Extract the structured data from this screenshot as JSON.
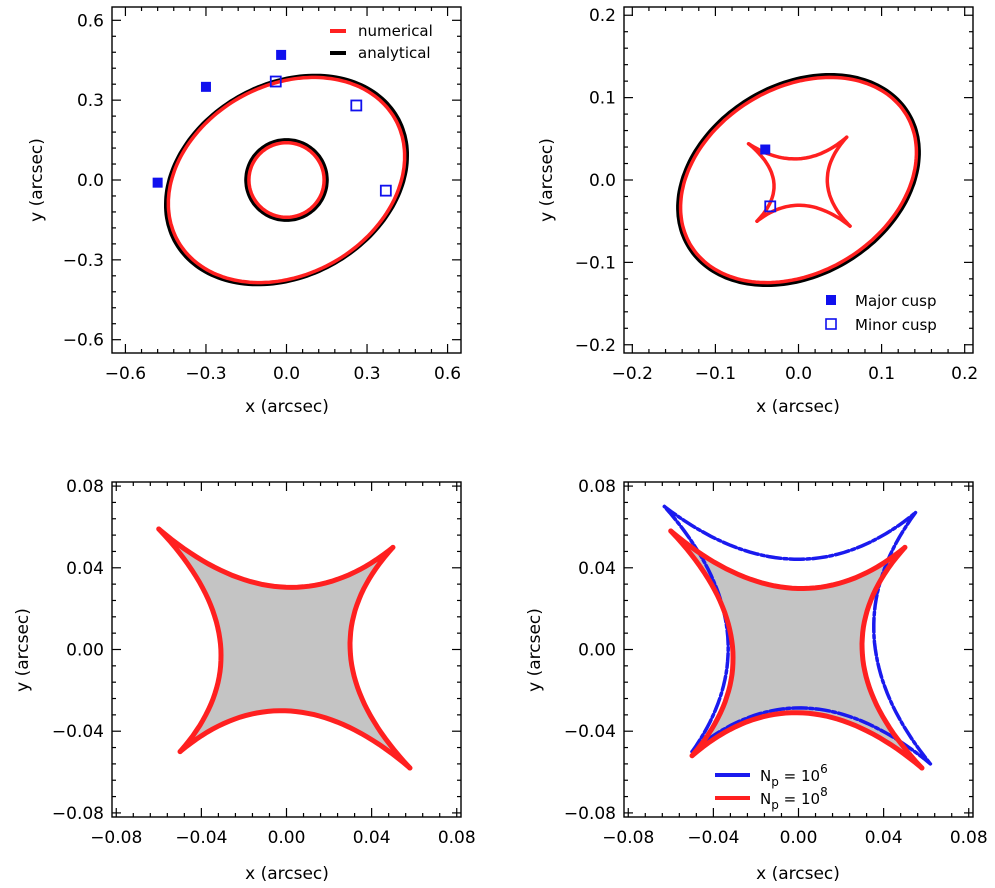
{
  "colors": {
    "numerical": "#ff2020",
    "analytical": "#000000",
    "cusp": "#1010ee",
    "np6": "#1a1aee",
    "np8": "#ff2020"
  },
  "chart_data": [
    {
      "type": "line",
      "panel": "top-left",
      "xlabel": "x (arcsec)",
      "ylabel": "y (arcsec)",
      "xlim": [
        -0.65,
        0.65
      ],
      "ylim": [
        -0.65,
        0.65
      ],
      "xticks": [
        "−0.6",
        "−0.3",
        "0.0",
        "0.3",
        "0.6"
      ],
      "yticks": [
        "−0.6",
        "−0.3",
        "0.0",
        "0.3",
        "0.6"
      ],
      "legend": [
        "numerical",
        "analytical"
      ],
      "legend_position": "top-right",
      "series": [
        {
          "name": "analytical",
          "shape": "ellipse",
          "center": [
            0.0,
            0.0
          ],
          "semi_axes": [
            0.475,
            0.36
          ],
          "angle_deg": 30
        },
        {
          "name": "numerical",
          "shape": "ellipse",
          "center": [
            0.0,
            0.0
          ],
          "semi_axes": [
            0.465,
            0.355
          ],
          "angle_deg": 30
        },
        {
          "name": "analytical",
          "shape": "circle",
          "center": [
            0.0,
            0.0
          ],
          "radius": 0.15
        },
        {
          "name": "numerical",
          "shape": "circle",
          "center": [
            0.0,
            0.0
          ],
          "radius": 0.14
        }
      ],
      "points": [
        {
          "x": -0.48,
          "y": -0.01,
          "kind": "major"
        },
        {
          "x": -0.3,
          "y": 0.35,
          "kind": "major"
        },
        {
          "x": -0.02,
          "y": 0.47,
          "kind": "major"
        },
        {
          "x": -0.04,
          "y": 0.37,
          "kind": "minor"
        },
        {
          "x": 0.26,
          "y": 0.28,
          "kind": "minor"
        },
        {
          "x": 0.37,
          "y": -0.04,
          "kind": "minor"
        }
      ]
    },
    {
      "type": "line",
      "panel": "top-right",
      "xlabel": "x (arcsec)",
      "ylabel": "y (arcsec)",
      "xlim": [
        -0.21,
        0.21
      ],
      "ylim": [
        -0.21,
        0.21
      ],
      "xticks": [
        "−0.2",
        "−0.1",
        "0.0",
        "0.1",
        "0.2"
      ],
      "yticks": [
        "−0.2",
        "−0.1",
        "0.0",
        "0.1",
        "0.2"
      ],
      "legend": [
        "Major cusp",
        "Minor cusp"
      ],
      "legend_position": "bottom-right",
      "series": [
        {
          "name": "analytical",
          "shape": "ellipse",
          "center": [
            0.0,
            0.0
          ],
          "semi_axes": [
            0.155,
            0.115
          ],
          "angle_deg": 32
        },
        {
          "name": "numerical",
          "shape": "ellipse",
          "center": [
            0.0,
            0.0
          ],
          "semi_axes": [
            0.152,
            0.112
          ],
          "angle_deg": 32
        },
        {
          "name": "numerical",
          "shape": "astroid",
          "tips": [
            [
              -0.06,
              0.044
            ],
            [
              0.058,
              0.052
            ],
            [
              0.062,
              -0.056
            ],
            [
              -0.05,
              -0.05
            ]
          ],
          "concavity": 0.55
        }
      ],
      "points": [
        {
          "x": -0.04,
          "y": 0.037,
          "kind": "major"
        },
        {
          "x": -0.034,
          "y": -0.032,
          "kind": "minor"
        }
      ]
    },
    {
      "type": "heatmap",
      "panel": "bottom-left",
      "xlabel": "x (arcsec)",
      "ylabel": "y (arcsec)",
      "xlim": [
        -0.082,
        0.082
      ],
      "ylim": [
        -0.082,
        0.082
      ],
      "xticks": [
        "−0.08",
        "−0.04",
        "0.00",
        "0.04",
        "0.08"
      ],
      "yticks": [
        "−0.08",
        "−0.04",
        "0.00",
        "0.04",
        "0.08"
      ],
      "series": [
        {
          "name": "numerical",
          "shape": "astroid",
          "tips": [
            [
              -0.06,
              0.059
            ],
            [
              0.05,
              0.05
            ],
            [
              0.058,
              -0.058
            ],
            [
              -0.05,
              -0.05
            ]
          ],
          "concavity": 0.55
        }
      ]
    },
    {
      "type": "heatmap",
      "panel": "bottom-right",
      "xlabel": "x (arcsec)",
      "ylabel": "y (arcsec)",
      "xlim": [
        -0.082,
        0.082
      ],
      "ylim": [
        -0.082,
        0.082
      ],
      "xticks": [
        "−0.08",
        "−0.04",
        "0.00",
        "0.04",
        "0.08"
      ],
      "yticks": [
        "−0.08",
        "−0.04",
        "0.00",
        "0.04",
        "0.08"
      ],
      "legend": [
        "N_p = 10^6",
        "N_p = 10^8"
      ],
      "legend_position": "bottom-right",
      "series": [
        {
          "name": "N_p = 10^6",
          "shape": "astroid",
          "tips": [
            [
              -0.063,
              0.07
            ],
            [
              0.055,
              0.067
            ],
            [
              0.062,
              -0.056
            ],
            [
              -0.05,
              -0.05
            ]
          ],
          "concavity": 0.5
        },
        {
          "name": "N_p = 10^8",
          "shape": "astroid",
          "tips": [
            [
              -0.06,
              0.058
            ],
            [
              0.05,
              0.05
            ],
            [
              0.058,
              -0.058
            ],
            [
              -0.05,
              -0.052
            ]
          ],
          "concavity": 0.55
        }
      ]
    }
  ],
  "legend_text": {
    "numerical": "numerical",
    "analytical": "analytical",
    "major": "Major cusp",
    "minor": "Minor cusp",
    "np_label": "N",
    "np_sub": "p",
    "np_eq": " = 10",
    "np6_exp": "6",
    "np8_exp": "8"
  }
}
